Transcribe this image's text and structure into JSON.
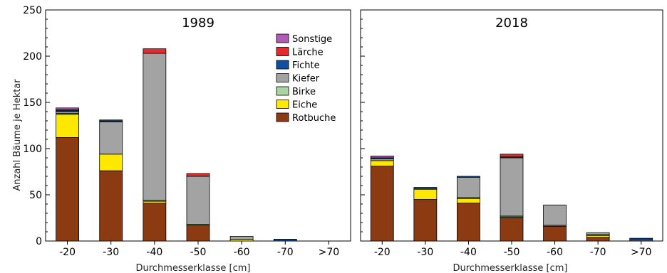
{
  "chart_data": {
    "type": "bar",
    "stacked": true,
    "ylabel": "Anzahl Bäume je Hektar",
    "ylim": [
      0,
      250
    ],
    "yticks": [
      0,
      50,
      100,
      150,
      200,
      250
    ],
    "xlabel": "Durchmesserklasse [cm]",
    "categories": [
      "-20",
      "-30",
      "-40",
      "-50",
      "-60",
      "-70",
      ">70"
    ],
    "legend_position": "top-right of first panel",
    "colors": {
      "Rotbuche": "#8b3a12",
      "Eiche": "#ffe800",
      "Birke": "#a8d5a0",
      "Kiefer": "#a3a3a3",
      "Fichte": "#0d4fa3",
      "Lärche": "#e8282a",
      "Sonstige": "#b05bb5"
    },
    "stack_order": [
      "Rotbuche",
      "Eiche",
      "Birke",
      "Kiefer",
      "Fichte",
      "Lärche",
      "Sonstige"
    ],
    "legend_order": [
      "Sonstige",
      "Lärche",
      "Fichte",
      "Kiefer",
      "Birke",
      "Eiche",
      "Rotbuche"
    ],
    "panels": [
      {
        "title": "1989",
        "series": [
          {
            "name": "Rotbuche",
            "values": [
              112,
              76,
              41,
              17,
              0,
              0,
              0
            ]
          },
          {
            "name": "Eiche",
            "values": [
              25,
              18,
              2,
              0,
              2,
              0,
              0
            ]
          },
          {
            "name": "Birke",
            "values": [
              1,
              0,
              1,
              1,
              0,
              0,
              0
            ]
          },
          {
            "name": "Kiefer",
            "values": [
              2,
              35,
              159,
              52,
              3,
              0,
              0
            ]
          },
          {
            "name": "Fichte",
            "values": [
              1,
              1,
              0,
              0,
              0,
              2,
              0
            ]
          },
          {
            "name": "Lärche",
            "values": [
              1,
              1,
              5,
              3,
              0,
              0,
              0
            ]
          },
          {
            "name": "Sonstige",
            "values": [
              2,
              0,
              0,
              0,
              0,
              0,
              0
            ]
          }
        ]
      },
      {
        "title": "2018",
        "series": [
          {
            "name": "Rotbuche",
            "values": [
              81,
              45,
              41,
              25,
              16,
              4,
              0
            ]
          },
          {
            "name": "Eiche",
            "values": [
              6,
              11,
              5,
              1,
              0,
              2,
              0
            ]
          },
          {
            "name": "Birke",
            "values": [
              0,
              0,
              1,
              1,
              1,
              1,
              0
            ]
          },
          {
            "name": "Kiefer",
            "values": [
              2,
              1,
              22,
              63,
              22,
              2,
              1
            ]
          },
          {
            "name": "Fichte",
            "values": [
              1,
              1,
              1,
              1,
              0,
              0,
              2
            ]
          },
          {
            "name": "Lärche",
            "values": [
              0,
              0,
              0,
              3,
              0,
              0,
              0
            ]
          },
          {
            "name": "Sonstige",
            "values": [
              2,
              0,
              0,
              0,
              0,
              0,
              0
            ]
          }
        ]
      }
    ]
  }
}
